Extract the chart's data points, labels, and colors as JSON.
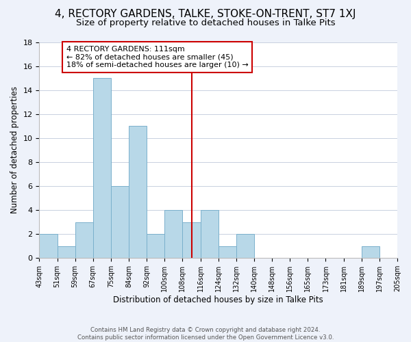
{
  "title": "4, RECTORY GARDENS, TALKE, STOKE-ON-TRENT, ST7 1XJ",
  "subtitle": "Size of property relative to detached houses in Talke Pits",
  "xlabel": "Distribution of detached houses by size in Talke Pits",
  "ylabel": "Number of detached properties",
  "tick_labels": [
    "43sqm",
    "51sqm",
    "59sqm",
    "67sqm",
    "75sqm",
    "84sqm",
    "92sqm",
    "100sqm",
    "108sqm",
    "116sqm",
    "124sqm",
    "132sqm",
    "140sqm",
    "148sqm",
    "156sqm",
    "165sqm",
    "173sqm",
    "181sqm",
    "189sqm",
    "197sqm",
    "205sqm"
  ],
  "counts": [
    2,
    1,
    3,
    15,
    6,
    11,
    2,
    4,
    3,
    4,
    1,
    2,
    0,
    0,
    0,
    0,
    0,
    0,
    1,
    0
  ],
  "bar_color": "#b8d8e8",
  "bar_edge_color": "#7ab0cc",
  "vline_bin": 8.5,
  "vline_color": "#cc0000",
  "annotation_box_text": "4 RECTORY GARDENS: 111sqm\n← 82% of detached houses are smaller (45)\n18% of semi-detached houses are larger (10) →",
  "annotation_box_edge_color": "#cc0000",
  "ylim": [
    0,
    18
  ],
  "yticks": [
    0,
    2,
    4,
    6,
    8,
    10,
    12,
    14,
    16,
    18
  ],
  "footer_text": "Contains HM Land Registry data © Crown copyright and database right 2024.\nContains public sector information licensed under the Open Government Licence v3.0.",
  "background_color": "#eef2fa",
  "plot_background_color": "#ffffff",
  "title_fontsize": 11,
  "subtitle_fontsize": 9.5,
  "grid_color": "#c8d0e0"
}
